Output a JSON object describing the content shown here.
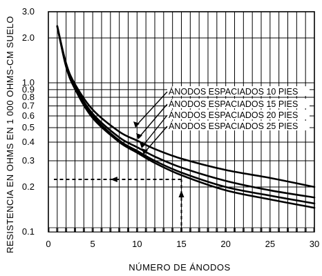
{
  "chart_data": {
    "type": "line",
    "xlabel": "NÚMERO DE ÁNODOS",
    "ylabel": "RESISTENCIA EN OHMS EN 1 000 OHMS-CM SUELO",
    "xlim": [
      0,
      30
    ],
    "ylim": [
      0.1,
      3.0
    ],
    "y_scale": "log",
    "grid": true,
    "x_ticks": [
      "0",
      "5",
      "10",
      "15",
      "20",
      "25",
      "30"
    ],
    "y_ticks": [
      {
        "v": 3.0,
        "label": "3.0"
      },
      {
        "v": 2.0,
        "label": "2.0"
      },
      {
        "v": 1.0,
        "label": "1.0"
      },
      {
        "v": 0.9,
        "label": "0.9"
      },
      {
        "v": 0.8,
        "label": "0.8"
      },
      {
        "v": 0.7,
        "label": "0.7"
      },
      {
        "v": 0.6,
        "label": "0.6"
      },
      {
        "v": 0.5,
        "label": "0.5"
      },
      {
        "v": 0.4,
        "label": "0.4"
      },
      {
        "v": 0.3,
        "label": "0.3"
      },
      {
        "v": 0.2,
        "label": "0.2"
      },
      {
        "v": 0.1,
        "label": "0.1"
      }
    ],
    "series": [
      {
        "name": "ÁNODOS ESPACIADOS 10 PIES",
        "x": [
          1,
          2,
          3,
          5,
          8,
          10,
          12,
          15,
          20,
          25,
          30
        ],
        "values": [
          2.4,
          1.35,
          0.98,
          0.66,
          0.47,
          0.41,
          0.36,
          0.31,
          0.26,
          0.23,
          0.2
        ]
      },
      {
        "name": "ÁNODOS ESPACIADOS 15 PIES",
        "x": [
          1,
          2,
          3,
          5,
          8,
          10,
          12,
          15,
          20,
          25,
          30
        ],
        "values": [
          2.4,
          1.32,
          0.95,
          0.62,
          0.43,
          0.37,
          0.32,
          0.27,
          0.22,
          0.19,
          0.17
        ]
      },
      {
        "name": "ÁNODOS ESPACIADOS 20 PIES",
        "x": [
          1,
          2,
          3,
          5,
          8,
          10,
          12,
          15,
          20,
          25,
          30
        ],
        "values": [
          2.4,
          1.3,
          0.93,
          0.6,
          0.41,
          0.35,
          0.3,
          0.25,
          0.2,
          0.175,
          0.155
        ]
      },
      {
        "name": "ÁNODOS ESPACIADOS 25 PIES",
        "x": [
          1,
          2,
          3,
          5,
          8,
          10,
          12,
          15,
          20,
          25,
          30
        ],
        "values": [
          2.4,
          1.28,
          0.91,
          0.58,
          0.4,
          0.34,
          0.29,
          0.24,
          0.19,
          0.165,
          0.145
        ]
      }
    ],
    "annotation": {
      "x": 15,
      "y": 0.225
    }
  }
}
